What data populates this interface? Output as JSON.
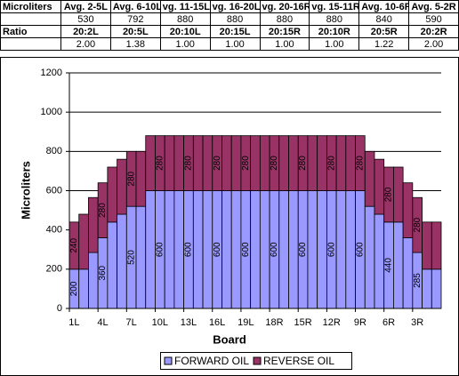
{
  "table": {
    "rows": [
      [
        "Microliters",
        "Avg. 2-5L",
        "Avg. 6-10L",
        "vg. 11-15L",
        "vg. 16-20L",
        "vg. 20-16R",
        "vg. 15-11R",
        "Avg. 10-6R",
        "Avg. 5-2R"
      ],
      [
        null,
        530,
        792,
        880,
        880,
        880,
        880,
        840,
        590
      ],
      [
        "Ratio",
        "20:2L",
        "20:5L",
        "20:10L",
        "20:15L",
        "20:15R",
        "20:10R",
        "20:5R",
        "20:2R"
      ],
      [
        null,
        "2.00",
        "1.38",
        "1.00",
        "1.00",
        "1.00",
        "1.00",
        "1.22",
        "2.00"
      ]
    ]
  },
  "chart_data": {
    "type": "stacked_bar",
    "x_label": "Board",
    "y_label": "Microliters",
    "categories": [
      "1L",
      null,
      null,
      "4L",
      null,
      null,
      "7L",
      null,
      null,
      "10L",
      null,
      null,
      "13L",
      null,
      null,
      "16L",
      null,
      null,
      "19L",
      null,
      null,
      "18R",
      null,
      null,
      "15R",
      null,
      null,
      "12R",
      null,
      null,
      "9R",
      null,
      null,
      "6R",
      null,
      null,
      "3R",
      null,
      null
    ],
    "series": [
      {
        "name": "FORWARD OIL",
        "color": "#9999ff",
        "values": [
          200,
          200,
          285,
          360,
          440,
          480,
          520,
          520,
          600,
          600,
          600,
          600,
          600,
          600,
          600,
          600,
          600,
          600,
          600,
          600,
          600,
          600,
          600,
          600,
          600,
          600,
          600,
          600,
          600,
          600,
          600,
          520,
          480,
          440,
          440,
          360,
          285,
          200,
          200
        ]
      },
      {
        "name": "REVERSE OIL",
        "color": "#993366",
        "values": [
          240,
          280,
          280,
          280,
          280,
          280,
          280,
          280,
          280,
          280,
          280,
          280,
          280,
          280,
          280,
          280,
          280,
          280,
          280,
          280,
          280,
          280,
          280,
          280,
          280,
          280,
          280,
          280,
          280,
          280,
          280,
          280,
          280,
          280,
          280,
          280,
          280,
          240,
          240
        ]
      }
    ],
    "ylim": [
      0,
      1200
    ],
    "yticks": [
      0,
      200,
      400,
      600,
      800,
      1000,
      1200
    ],
    "grid": true,
    "legend": "bottom"
  }
}
